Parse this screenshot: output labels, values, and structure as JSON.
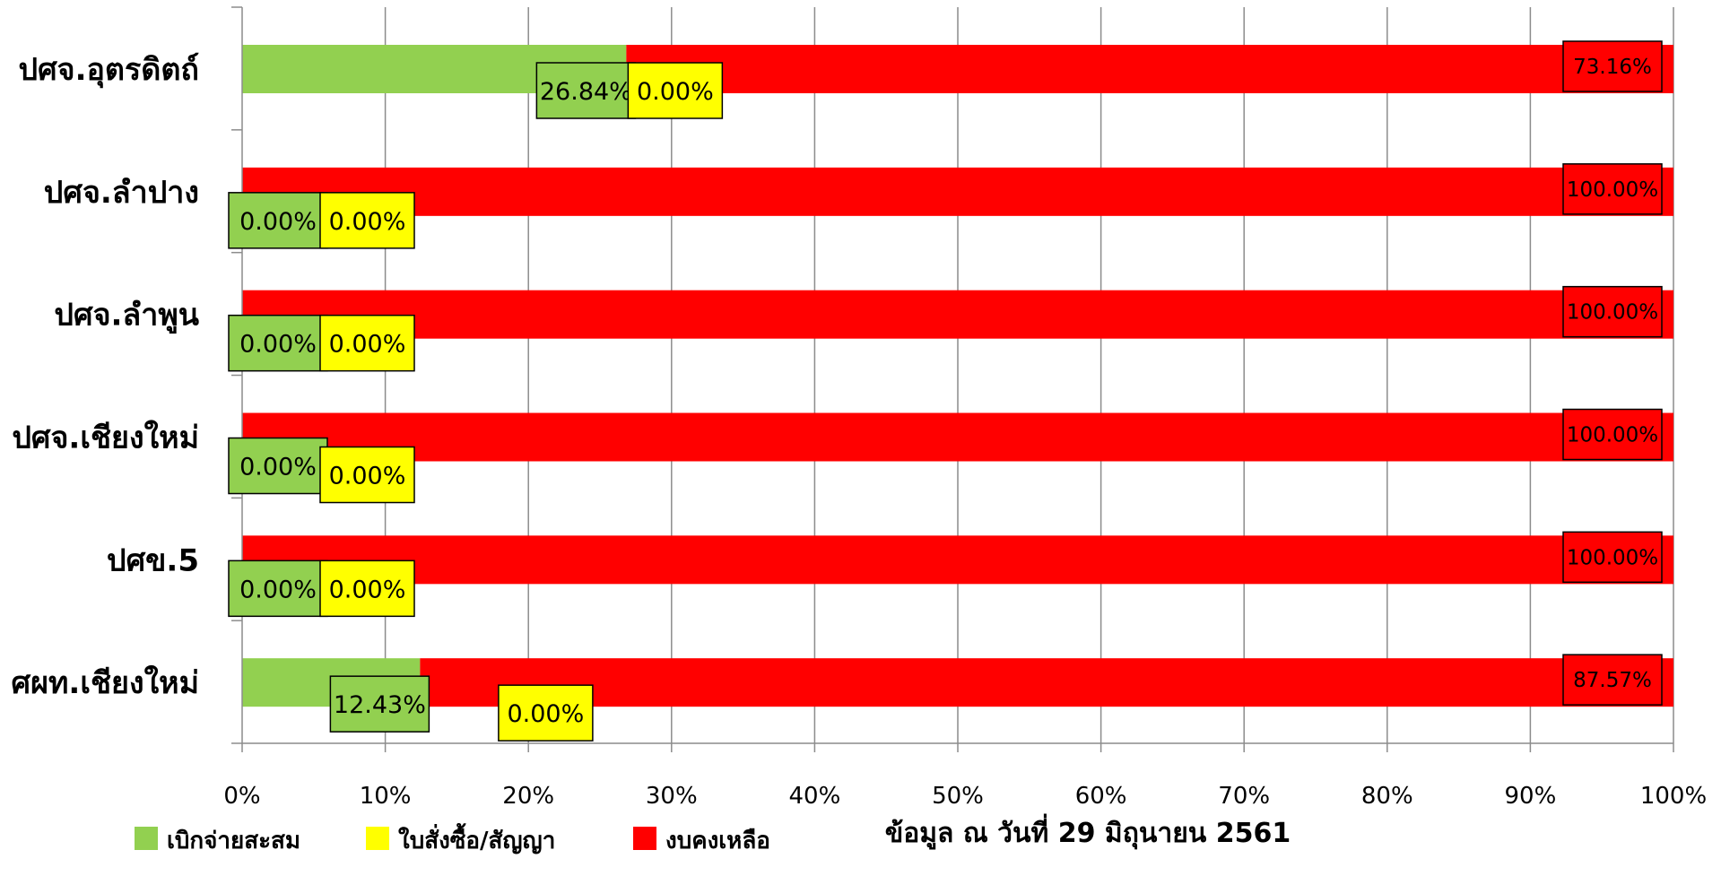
{
  "chart_data": {
    "type": "bar",
    "orientation": "horizontal",
    "stacked": true,
    "percent": true,
    "categories": [
      "ปศจ.อุตรดิตถ์",
      "ปศจ.ลำปาง",
      "ปศจ.ลำพูน",
      "ปศจ.เชียงใหม่",
      "ปศข.5",
      "ศผท.เชียงใหม่"
    ],
    "series": [
      {
        "name": "เบิกจ่ายสะสม",
        "color": "#92d050",
        "values": [
          26.84,
          0.0,
          0.0,
          0.0,
          0.0,
          12.43
        ],
        "labels": [
          "26.84%",
          "0.00%",
          "0.00%",
          "0.00%",
          "0.00%",
          "12.43%"
        ]
      },
      {
        "name": "ใบสั่งซื้อ/สัญญา",
        "color": "#ffff00",
        "values": [
          0.0,
          0.0,
          0.0,
          0.0,
          0.0,
          0.0
        ],
        "labels": [
          "0.00%",
          "0.00%",
          "0.00%",
          "0.00%",
          "0.00%",
          "0.00%"
        ]
      },
      {
        "name": "งบคงเหลือ",
        "color": "#ff0000",
        "values": [
          73.16,
          100.0,
          100.0,
          100.0,
          100.0,
          87.57
        ],
        "labels": [
          "73.16%",
          "100.00%",
          "100.00%",
          "100.00%",
          "100.00%",
          "87.57%"
        ]
      }
    ],
    "xlim": [
      0,
      100
    ],
    "x_ticks": [
      "0%",
      "10%",
      "20%",
      "30%",
      "40%",
      "50%",
      "60%",
      "70%",
      "80%",
      "90%",
      "100%"
    ],
    "grid": true,
    "legend_position": "bottom-left",
    "note": "ข้อมูล ณ วันที่ 29 มิถุนายน 2561"
  }
}
